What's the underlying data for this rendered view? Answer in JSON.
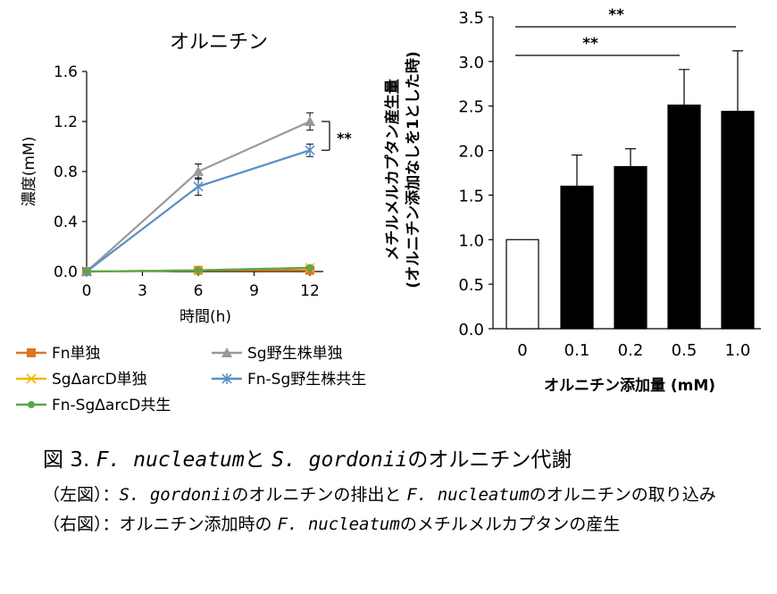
{
  "chart_data": [
    {
      "type": "line",
      "title": "オルニチン",
      "xlabel": "時間(h)",
      "ylabel": "濃度(mM)",
      "x": [
        0,
        6,
        12
      ],
      "xticks": [
        "0",
        "3",
        "6",
        "9",
        "12"
      ],
      "yticks": [
        "0.0",
        "0.4",
        "0.8",
        "1.2",
        "1.6"
      ],
      "xlim": [
        0,
        12
      ],
      "ylim": [
        0,
        1.6
      ],
      "grid": false,
      "legend": "bottom",
      "series": [
        {
          "name": "Fn単独",
          "values": [
            0.0,
            0.01,
            0.01
          ],
          "color": "#e0741d",
          "marker": "square",
          "errors": [
            0,
            0,
            0
          ]
        },
        {
          "name": "Sg野生株単独",
          "values": [
            0.0,
            0.8,
            1.2
          ],
          "color": "#999999",
          "marker": "triangle",
          "errors": [
            0,
            0.06,
            0.07
          ]
        },
        {
          "name": "SgΔarcD単独",
          "values": [
            0.0,
            0.01,
            0.03
          ],
          "color": "#f2b705",
          "marker": "x",
          "errors": [
            0,
            0,
            0
          ]
        },
        {
          "name": "Fn-Sg野生株共生",
          "values": [
            0.0,
            0.68,
            0.97
          ],
          "color": "#5b8ec6",
          "marker": "star",
          "errors": [
            0,
            0.07,
            0.05
          ]
        },
        {
          "name": "Fn-SgΔarcD共生",
          "values": [
            0.0,
            0.01,
            0.03
          ],
          "color": "#5aa64a",
          "marker": "circle",
          "errors": [
            0,
            0,
            0
          ]
        }
      ],
      "annotations": [
        "**"
      ]
    },
    {
      "type": "bar",
      "xlabel": "オルニチン添加量 (mM)",
      "ylabel": "メチルメルカプタン産生量",
      "ylabel2": "(オルニチン添加なしを1とした時)",
      "categories": [
        "0",
        "0.1",
        "0.2",
        "0.5",
        "1.0"
      ],
      "values": [
        1.0,
        1.6,
        1.82,
        2.51,
        2.44
      ],
      "errors": [
        0,
        0.35,
        0.2,
        0.4,
        0.68
      ],
      "fills": [
        "#ffffff",
        "#000000",
        "#000000",
        "#000000",
        "#000000"
      ],
      "yticks": [
        "0.0",
        "0.5",
        "1.0",
        "1.5",
        "2.0",
        "2.5",
        "3.0",
        "3.5"
      ],
      "ylim": [
        0,
        3.5
      ],
      "grid": false,
      "annotations": [
        "**",
        "**"
      ]
    }
  ],
  "caption": {
    "title_prefix": "図 3. ",
    "title_species1": "F. nucleatum",
    "title_mid": "と ",
    "title_species2": "S. gordonii",
    "title_suffix": "のオルニチン代謝",
    "left_prefix": "（左図）：",
    "left_species1": "S. gordonii",
    "left_mid": "のオルニチンの排出と ",
    "left_species2": "F. nucleatum",
    "left_suffix": "のオルニチンの取り込み",
    "right_prefix": "（右図）：オルニチン添加時の ",
    "right_species": "F. nucleatum",
    "right_suffix": "のメチルメルカプタンの産生"
  }
}
